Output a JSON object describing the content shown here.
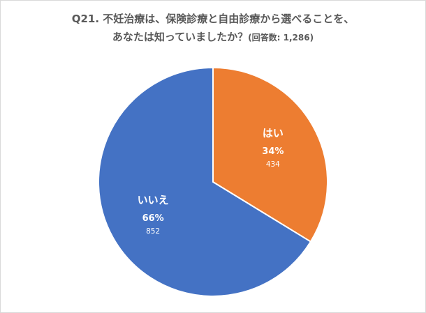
{
  "chart_data": {
    "type": "pie",
    "title_line1": "Q21. 不妊治療は、保険診療と自由診療から選べることを、",
    "title_line2": "あなたは知っていましたか？",
    "title_note": "(回答数: 1,286)",
    "slices": [
      {
        "label": "はい",
        "percent_label": "34%",
        "count_label": "434",
        "value": 434,
        "color": "#ED7D31"
      },
      {
        "label": "いいえ",
        "percent_label": "66%",
        "count_label": "852",
        "value": 852,
        "color": "#4472C4"
      }
    ],
    "total": 1286,
    "start": "12 o'clock",
    "direction": "clockwise"
  }
}
